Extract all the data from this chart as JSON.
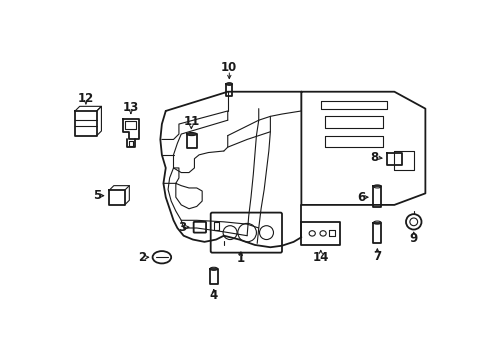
{
  "bg_color": "#ffffff",
  "line_color": "#1a1a1a",
  "lw_main": 1.3,
  "lw_thin": 0.8,
  "lw_label": 0.7
}
